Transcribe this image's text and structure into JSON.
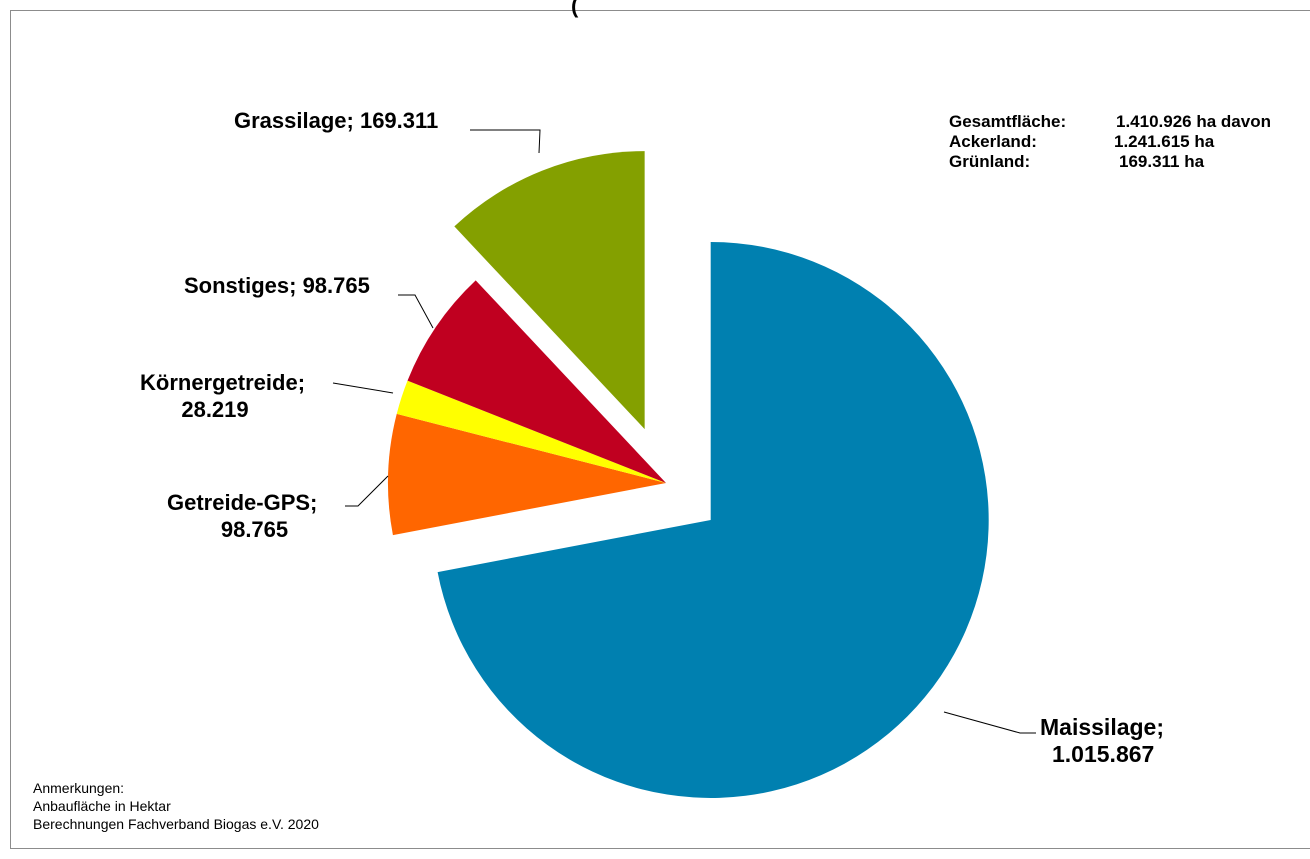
{
  "title_fragment": "(",
  "chart_data": {
    "type": "pie",
    "title": "",
    "unit": "Hektar",
    "slices": [
      {
        "category": "Maissilage",
        "value": 1015867,
        "label": "1.015.867",
        "color": "#0080B0",
        "exploded": true
      },
      {
        "category": "Getreide-GPS",
        "value": 98765,
        "label": "98.765",
        "color": "#FF6600",
        "exploded": false
      },
      {
        "category": "Körnergetreide",
        "value": 28219,
        "label": "28.219",
        "color": "#FFFF00",
        "exploded": false
      },
      {
        "category": "Sonstiges",
        "value": 98765,
        "label": "98.765",
        "color": "#C00020",
        "exploded": false
      },
      {
        "category": "Grassilage",
        "value": 169311,
        "label": "169.311",
        "color": "#84A000",
        "exploded": true
      }
    ],
    "legend": "none",
    "data_labels": "category; value"
  },
  "labels": {
    "grassilage_line1": "Grassilage; 169.311",
    "sonstiges_line1": "Sonstiges; 98.765",
    "koerner_line1": "Körnergetreide;",
    "koerner_line2": "28.219",
    "gps_line1": "Getreide-GPS;",
    "gps_line2": "98.765",
    "mais_line1": "Maissilage;",
    "mais_line2": "1.015.867"
  },
  "totals": {
    "rows": [
      {
        "key": "Gesamtfläche:",
        "value": "1.410.926 ha davon"
      },
      {
        "key": "Ackerland:",
        "value": "1.241.615 ha"
      },
      {
        "key": "Grünland:",
        "value": "169.311 ha"
      }
    ]
  },
  "notes": {
    "heading": "Anmerkungen:",
    "line1": "Anbaufläche in Hektar",
    "line2": "Berechnungen Fachverband Biogas e.V. 2020"
  }
}
